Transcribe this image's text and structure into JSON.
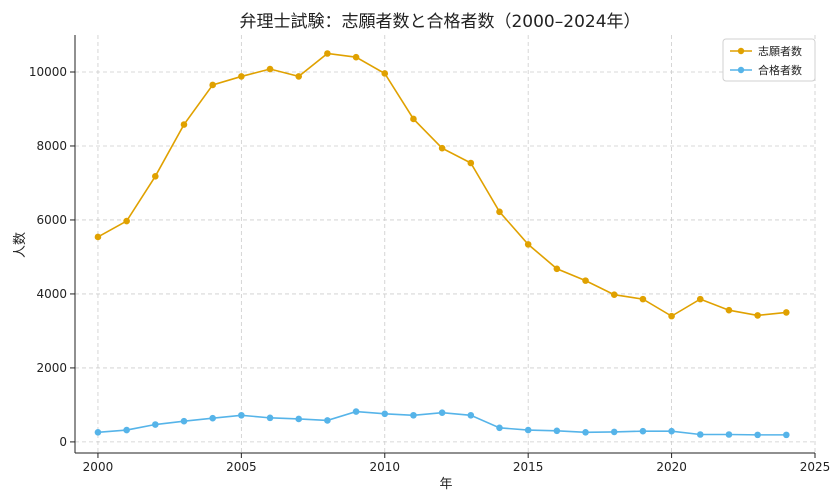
{
  "chart_data": {
    "type": "line",
    "title": "弁理士試験：志願者数と合格者数（2000–2024年）",
    "xlabel": "年",
    "ylabel": "人数",
    "xlim": [
      1999.2,
      2025
    ],
    "ylim": [
      -300,
      11000
    ],
    "xticks": [
      2000,
      2005,
      2010,
      2015,
      2020,
      2025
    ],
    "yticks": [
      0,
      2000,
      4000,
      6000,
      8000,
      10000
    ],
    "grid": true,
    "legend_position": "top-right",
    "x": [
      2000,
      2001,
      2002,
      2003,
      2004,
      2005,
      2006,
      2007,
      2008,
      2009,
      2010,
      2011,
      2012,
      2013,
      2014,
      2015,
      2016,
      2017,
      2018,
      2019,
      2020,
      2021,
      2022,
      2023,
      2024
    ],
    "series": [
      {
        "name": "志願者数",
        "color": "#E0A100",
        "values": [
          5540,
          5970,
          7180,
          8580,
          9650,
          9880,
          10080,
          9880,
          10500,
          10400,
          9960,
          8730,
          7940,
          7540,
          6220,
          5340,
          4680,
          4360,
          3980,
          3860,
          3400,
          3860,
          3560,
          3420,
          3500
        ]
      },
      {
        "name": "合格者数",
        "color": "#56B4E9",
        "values": [
          260,
          320,
          470,
          560,
          640,
          720,
          650,
          620,
          580,
          820,
          760,
          720,
          790,
          720,
          380,
          320,
          300,
          260,
          270,
          290,
          290,
          200,
          200,
          190,
          190
        ]
      }
    ]
  }
}
